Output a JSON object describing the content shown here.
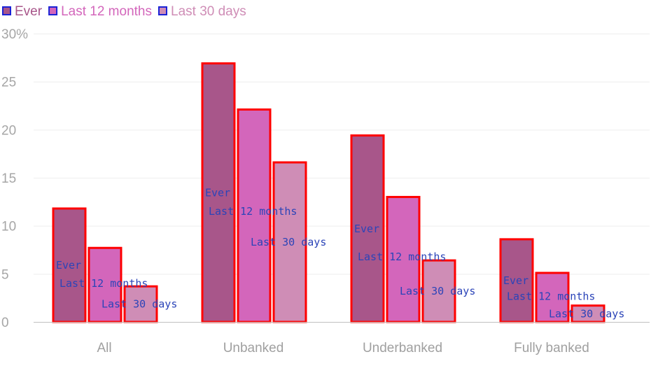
{
  "chart_data": {
    "type": "bar",
    "categories": [
      "All",
      "Unbanked",
      "Underbanked",
      "Fully banked"
    ],
    "series": [
      {
        "name": "Ever",
        "values": [
          11.8,
          26.9,
          19.4,
          8.6
        ],
        "color": "#a8568a"
      },
      {
        "name": "Last 12 months",
        "values": [
          7.7,
          22.1,
          13.0,
          5.1
        ],
        "color": "#d366bb"
      },
      {
        "name": "Last 30 days",
        "values": [
          3.7,
          16.6,
          6.4,
          1.7
        ],
        "color": "#cf8db6"
      }
    ],
    "yticks": [
      "0",
      "5",
      "10",
      "15",
      "20",
      "25",
      "30%"
    ],
    "ylim": [
      0,
      30
    ],
    "bar_border_color": "#ff0000",
    "label_color": "#2b44b8",
    "grid": true,
    "legend_position": "top-left"
  }
}
